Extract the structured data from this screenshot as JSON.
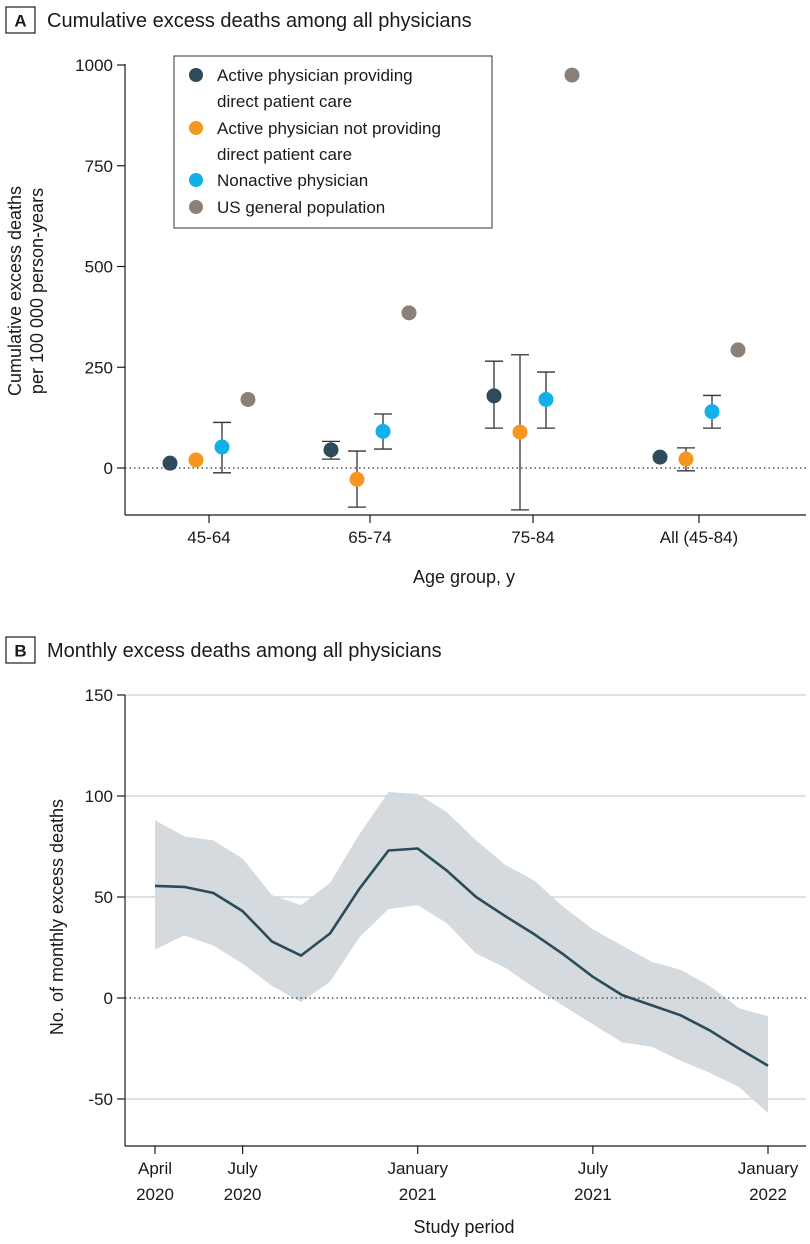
{
  "panel_a": {
    "letter": "A",
    "title": "Cumulative excess deaths among all physicians",
    "chart_data": {
      "type": "scatter",
      "title": "Cumulative excess deaths among all physicians",
      "xlabel": "Age group, y",
      "ylabel_lines": [
        "Cumulative excess deaths",
        "per 100 000 person-years"
      ],
      "ylim": [
        -115,
        1000
      ],
      "yticks": [
        0,
        250,
        500,
        750,
        1000
      ],
      "ytick_labels": [
        "0",
        "250",
        "500",
        "750",
        "1000"
      ],
      "categories": [
        "45-64",
        "65-74",
        "75-84",
        "All (45-84)"
      ],
      "legend_position": "top-left",
      "series": [
        {
          "name": "Active physician providing direct patient care",
          "legend_lines": [
            "Active physician providing",
            "direct patient care"
          ],
          "color": "#2e4b5a",
          "values": [
            12,
            45,
            179,
            27
          ],
          "lower": [
            null,
            22,
            99,
            null
          ],
          "upper": [
            null,
            66,
            265,
            null
          ]
        },
        {
          "name": "Active physician not providing direct patient care",
          "legend_lines": [
            "Active physician not providing",
            "direct patient care"
          ],
          "color": "#f5961f",
          "values": [
            20,
            -28,
            89,
            22
          ],
          "lower": [
            null,
            -97,
            -104,
            -7
          ],
          "upper": [
            null,
            42,
            281,
            50
          ]
        },
        {
          "name": "Nonactive physician",
          "legend_lines": [
            "Nonactive physician"
          ],
          "color": "#10b0e8",
          "values": [
            52,
            91,
            170,
            140
          ],
          "lower": [
            -12,
            47,
            99,
            99
          ],
          "upper": [
            113,
            134,
            238,
            180
          ]
        },
        {
          "name": "US general population",
          "legend_lines": [
            "US general population"
          ],
          "color": "#8b8178",
          "values": [
            170,
            385,
            975,
            293
          ],
          "lower": [
            null,
            null,
            null,
            null
          ],
          "upper": [
            null,
            null,
            null,
            null
          ]
        }
      ]
    }
  },
  "panel_b": {
    "letter": "B",
    "title": "Monthly excess deaths among all physicians",
    "chart_data": {
      "type": "line",
      "title": "Monthly excess deaths among all physicians",
      "xlabel": "Study period",
      "ylabel": "No. of monthly excess deaths",
      "ylim": [
        -72,
        150
      ],
      "yticks": [
        -50,
        0,
        50,
        100,
        150
      ],
      "ytick_labels": [
        "-50",
        "0",
        "50",
        "100",
        "150"
      ],
      "grid": "horizontal",
      "x": [
        "2020-04",
        "2020-05",
        "2020-06",
        "2020-07",
        "2020-08",
        "2020-09",
        "2020-10",
        "2020-11",
        "2020-12",
        "2021-01",
        "2021-02",
        "2021-03",
        "2021-04",
        "2021-05",
        "2021-06",
        "2021-07",
        "2021-08",
        "2021-09",
        "2021-10",
        "2021-11",
        "2021-12",
        "2022-01"
      ],
      "xtick_labels": [
        {
          "month": "2020-04",
          "lines": [
            "April",
            "2020"
          ]
        },
        {
          "month": "2020-07",
          "lines": [
            "July",
            "2020"
          ]
        },
        {
          "month": "2021-01",
          "lines": [
            "January",
            "2021"
          ]
        },
        {
          "month": "2021-07",
          "lines": [
            "July",
            "2021"
          ]
        },
        {
          "month": "2022-01",
          "lines": [
            "January",
            "2022"
          ]
        }
      ],
      "series": [
        {
          "name": "",
          "color": "#2b4b5b",
          "values": [
            55.5,
            55,
            52,
            43,
            28,
            21,
            32,
            54,
            73,
            74,
            63,
            50,
            40.5,
            31.5,
            21.5,
            10.5,
            1.5,
            -3.5,
            -8.5,
            -16,
            -25,
            -33.5
          ]
        }
      ],
      "band": {
        "color": "#d2d8dc",
        "lower": [
          24,
          31,
          26,
          17,
          6,
          -2,
          8,
          30,
          44,
          46,
          37,
          22,
          15,
          5,
          -4,
          -13,
          -22,
          -24,
          -31,
          -37,
          -44,
          -57
        ],
        "upper": [
          88,
          80,
          78,
          69,
          51,
          46,
          57,
          81,
          102,
          101,
          92,
          78,
          66,
          58,
          45,
          34,
          26,
          18,
          14,
          6,
          -5,
          -9
        ]
      }
    }
  }
}
